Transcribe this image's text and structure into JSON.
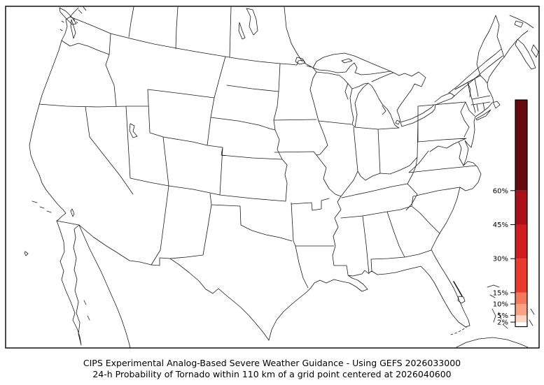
{
  "caption": {
    "line1": "CIPS Experimental Analog-Based Severe Weather Guidance - Using GEFS 2026033000",
    "line2": "24-h Probability of Tornado within 110 km of a grid point centered at 2026040600"
  },
  "colorbar": {
    "orientation": "vertical",
    "unit": "%",
    "value_range": [
      0,
      100
    ],
    "tick_values": [
      2,
      5,
      10,
      15,
      30,
      45,
      60
    ],
    "tick_labels": [
      "2%",
      "5%",
      "10%",
      "15%",
      "30%",
      "45%",
      "60%"
    ],
    "segments": [
      {
        "from": 0,
        "to": 2,
        "color": "#ffffff"
      },
      {
        "from": 2,
        "to": 5,
        "color": "#fdd3c1"
      },
      {
        "from": 5,
        "to": 10,
        "color": "#faa184"
      },
      {
        "from": 10,
        "to": 15,
        "color": "#f4795c"
      },
      {
        "from": 15,
        "to": 30,
        "color": "#ea3b2a"
      },
      {
        "from": 30,
        "to": 45,
        "color": "#d21d20"
      },
      {
        "from": 45,
        "to": 60,
        "color": "#aa1016"
      },
      {
        "from": 60,
        "to": 100,
        "color": "#670a0f"
      }
    ],
    "border_color": "#000000",
    "tick_color": "#000000",
    "label_color": "#000000"
  },
  "map": {
    "region": "Contiguous United States with state borders, plus southern Canada, northern Mexico, Cuba and Bahamas context",
    "background_color": "#ffffff",
    "line_color": "#1a1a1a",
    "frame_color": "#000000"
  },
  "chart_data": {
    "type": "heatmap",
    "title": "CIPS Experimental Analog-Based Severe Weather Guidance - Using GEFS 2026033000",
    "subtitle": "24-h Probability of Tornado within 110 km of a grid point centered at 2026040600",
    "variable": "24-h probability of tornado within 110 km of a grid point (%)",
    "model_shown_in_caption": "GEFS 2026033000",
    "valid_shown_in_caption": "2026040600",
    "colorscale_percent": [
      2,
      5,
      10,
      15,
      30,
      45,
      60
    ],
    "colorscale_colors": [
      "#ffffff",
      "#fdd3c1",
      "#faa184",
      "#f4795c",
      "#ea3b2a",
      "#d21d20",
      "#aa1016",
      "#670a0f"
    ],
    "filled_probability_areas": [],
    "note_visible_in_pixels": "map area contains no shaded probability regions (all values below 2%)",
    "legend_position": "right inside map frame",
    "grid": false
  }
}
